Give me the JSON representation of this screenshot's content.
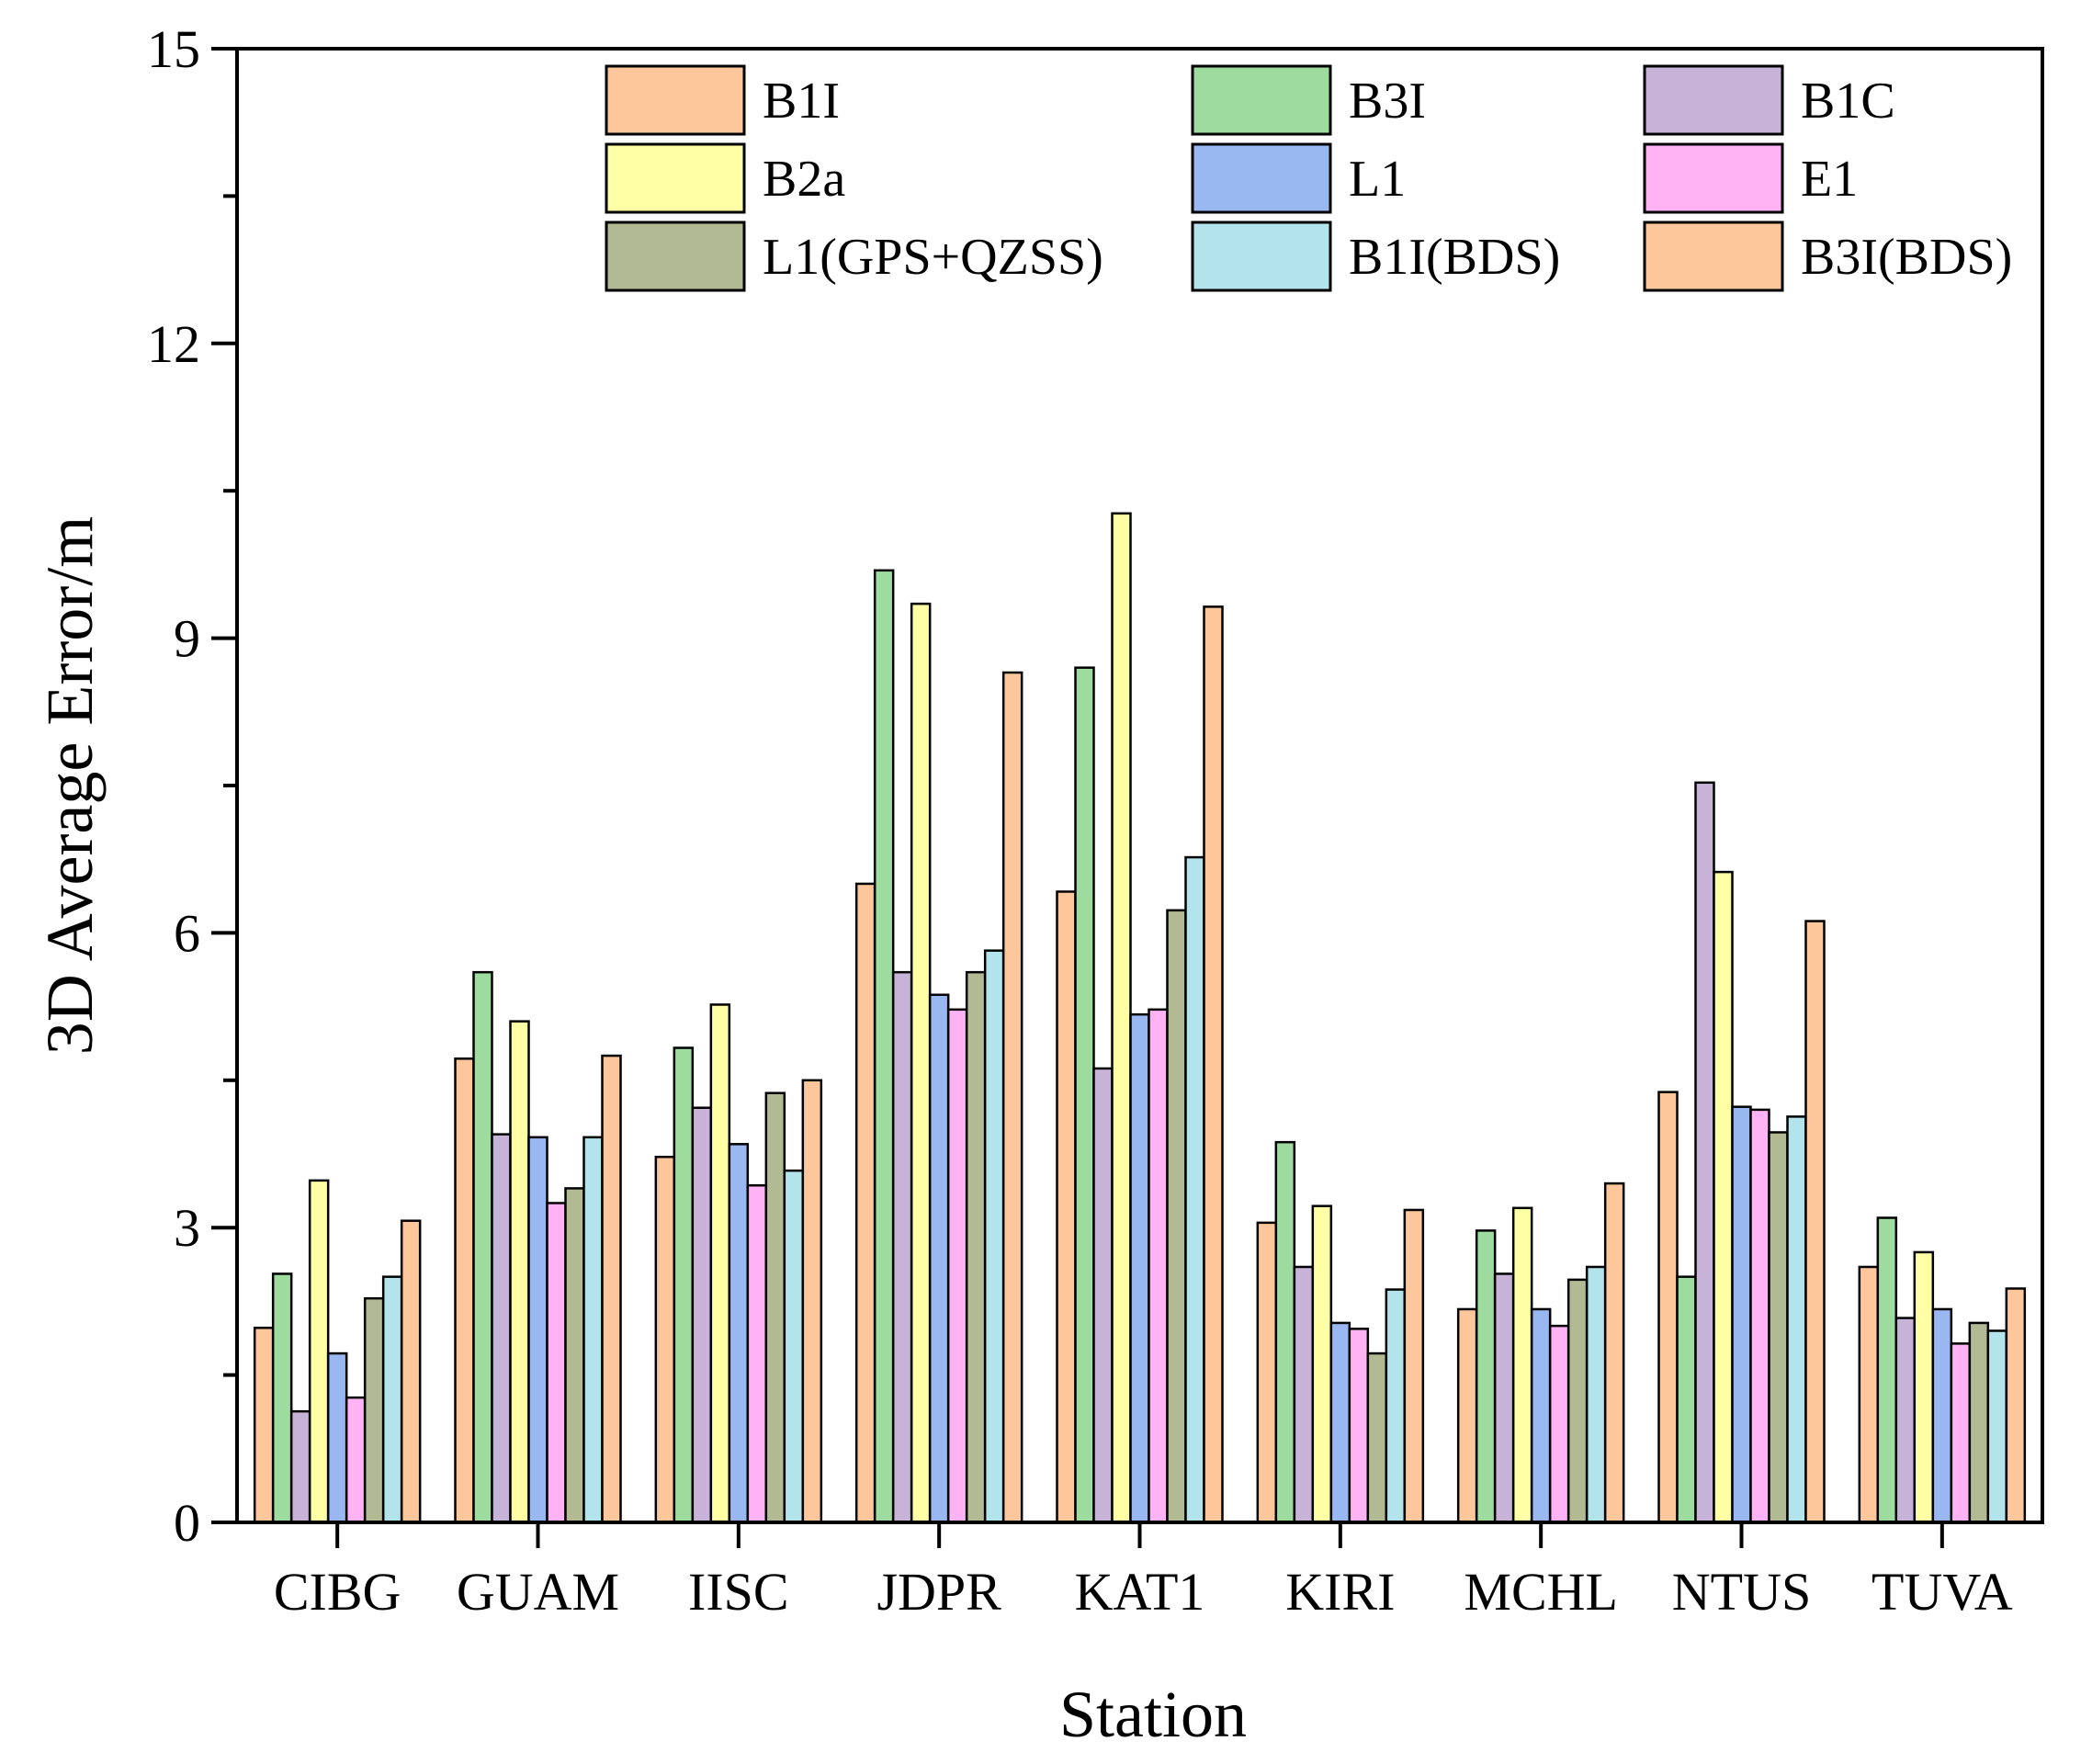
{
  "chart_data": {
    "type": "bar",
    "title": "",
    "xlabel": "Station",
    "ylabel": "3D Average Error/m",
    "ylim": [
      0,
      15
    ],
    "yticks": [
      0,
      3,
      6,
      9,
      12,
      15
    ],
    "ytick_labels": [
      "0",
      "3",
      "6",
      "9",
      "12",
      "15"
    ],
    "legend_position": "top",
    "categories": [
      "CIBG",
      "GUAM",
      "IISC",
      "JDPR",
      "KAT1",
      "KIRI",
      "MCHL",
      "NTUS",
      "TUVA"
    ],
    "series": [
      {
        "name": "B1I",
        "color": "#FDC79B",
        "values": [
          1.98,
          4.72,
          3.72,
          6.5,
          6.42,
          3.05,
          2.17,
          4.38,
          2.6
        ]
      },
      {
        "name": "B3I",
        "color": "#9EDB9E",
        "values": [
          2.53,
          5.6,
          4.83,
          9.69,
          8.7,
          3.87,
          2.97,
          2.5,
          3.1
        ]
      },
      {
        "name": "B1C",
        "color": "#C8B3D8",
        "values": [
          1.13,
          3.95,
          4.22,
          5.6,
          4.62,
          2.6,
          2.53,
          7.53,
          2.08
        ]
      },
      {
        "name": "B2a",
        "color": "#FFFFA6",
        "values": [
          3.48,
          5.1,
          5.27,
          9.35,
          10.27,
          3.22,
          3.2,
          6.62,
          2.75
        ]
      },
      {
        "name": "L1",
        "color": "#99B8F2",
        "values": [
          1.72,
          3.92,
          3.85,
          5.37,
          5.17,
          2.03,
          2.17,
          4.23,
          2.17
        ]
      },
      {
        "name": "E1",
        "color": "#FFB3F5",
        "values": [
          1.27,
          3.25,
          3.43,
          5.22,
          5.22,
          1.97,
          2.0,
          4.2,
          1.82
        ]
      },
      {
        "name": "L1(GPS+QZSS)",
        "color": "#B2BA94",
        "values": [
          2.28,
          3.4,
          4.37,
          5.6,
          6.23,
          1.72,
          2.47,
          3.97,
          2.03
        ]
      },
      {
        "name": "B1I(BDS)",
        "color": "#B3E3EB",
        "values": [
          2.5,
          3.92,
          3.58,
          5.82,
          6.77,
          2.37,
          2.6,
          4.13,
          1.95
        ]
      },
      {
        "name": "B3I(BDS)",
        "color": "#FDC79B",
        "values": [
          3.07,
          4.75,
          4.5,
          8.65,
          9.32,
          3.18,
          3.45,
          6.12,
          2.38
        ]
      }
    ]
  }
}
